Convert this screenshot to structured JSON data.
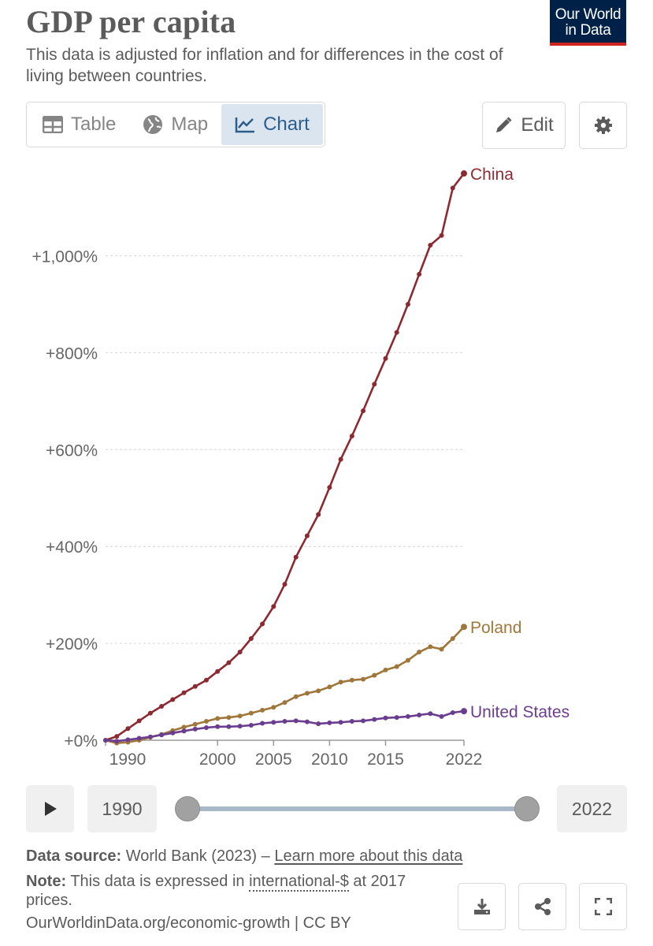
{
  "header": {
    "title": "GDP per capita",
    "subtitle": "This data is adjusted for inflation and for differences in the cost of living between countries.",
    "logo_line1": "Our World",
    "logo_line2": "in Data"
  },
  "tabs": [
    {
      "label": "Table",
      "icon": "table-icon",
      "active": false
    },
    {
      "label": "Map",
      "icon": "globe-icon",
      "active": false
    },
    {
      "label": "Chart",
      "icon": "line-chart-icon",
      "active": true
    }
  ],
  "toolbar": {
    "edit_label": "Edit",
    "settings_icon": "gear-icon"
  },
  "colors": {
    "china": "#8c2a32",
    "poland": "#a0773b",
    "united_states": "#6b3d8f",
    "accent": "#2d5e8b",
    "logo_bg": "#002147",
    "logo_bar": "#ce261e"
  },
  "chart_data": {
    "type": "line",
    "title": "GDP per capita",
    "xlabel": "",
    "ylabel": "",
    "x_ticks": [
      1990,
      2000,
      2005,
      2010,
      2015,
      2022
    ],
    "y_ticks": [
      0,
      200,
      400,
      600,
      800,
      1000
    ],
    "y_tick_labels": [
      "+0%",
      "+200%",
      "+400%",
      "+600%",
      "+800%",
      "+1,000%"
    ],
    "xlim": [
      1990,
      2022
    ],
    "ylim": [
      0,
      1170
    ],
    "grid": "horizontal-dashed",
    "legend": "inline-right-end",
    "x": [
      1990,
      1991,
      1992,
      1993,
      1994,
      1995,
      1996,
      1997,
      1998,
      1999,
      2000,
      2001,
      2002,
      2003,
      2004,
      2005,
      2006,
      2007,
      2008,
      2009,
      2010,
      2011,
      2012,
      2013,
      2014,
      2015,
      2016,
      2017,
      2018,
      2019,
      2020,
      2021,
      2022
    ],
    "series": [
      {
        "name": "China",
        "values": [
          0,
          8,
          24,
          40,
          56,
          70,
          84,
          98,
          111,
          124,
          142,
          160,
          182,
          210,
          240,
          276,
          322,
          378,
          422,
          466,
          522,
          580,
          628,
          680,
          735,
          788,
          842,
          900,
          962,
          1022,
          1042,
          1140,
          1170
        ]
      },
      {
        "name": "Poland",
        "values": [
          0,
          -6,
          -4,
          0,
          6,
          12,
          20,
          27,
          33,
          39,
          45,
          47,
          50,
          56,
          62,
          68,
          78,
          90,
          97,
          102,
          110,
          120,
          124,
          126,
          134,
          145,
          152,
          165,
          182,
          193,
          188,
          210,
          234
        ]
      },
      {
        "name": "United States",
        "values": [
          0,
          -2,
          1,
          4,
          7,
          11,
          15,
          19,
          23,
          26,
          28,
          28,
          29,
          31,
          35,
          37,
          39,
          40,
          38,
          34,
          36,
          37,
          39,
          40,
          43,
          46,
          47,
          49,
          52,
          55,
          49,
          57,
          60
        ]
      }
    ]
  },
  "timeline": {
    "start_year": "1990",
    "end_year": "2022",
    "play_icon": "play-icon"
  },
  "footer": {
    "source_label": "Data source:",
    "source_text": "World Bank (2023) –",
    "source_link": "Learn more about this data",
    "note_label": "Note:",
    "note_text_1": "This data is expressed in",
    "note_link": "international-$",
    "note_text_2": "at 2017 prices.",
    "url_text": "OurWorldinData.org/economic-growth | CC BY"
  }
}
